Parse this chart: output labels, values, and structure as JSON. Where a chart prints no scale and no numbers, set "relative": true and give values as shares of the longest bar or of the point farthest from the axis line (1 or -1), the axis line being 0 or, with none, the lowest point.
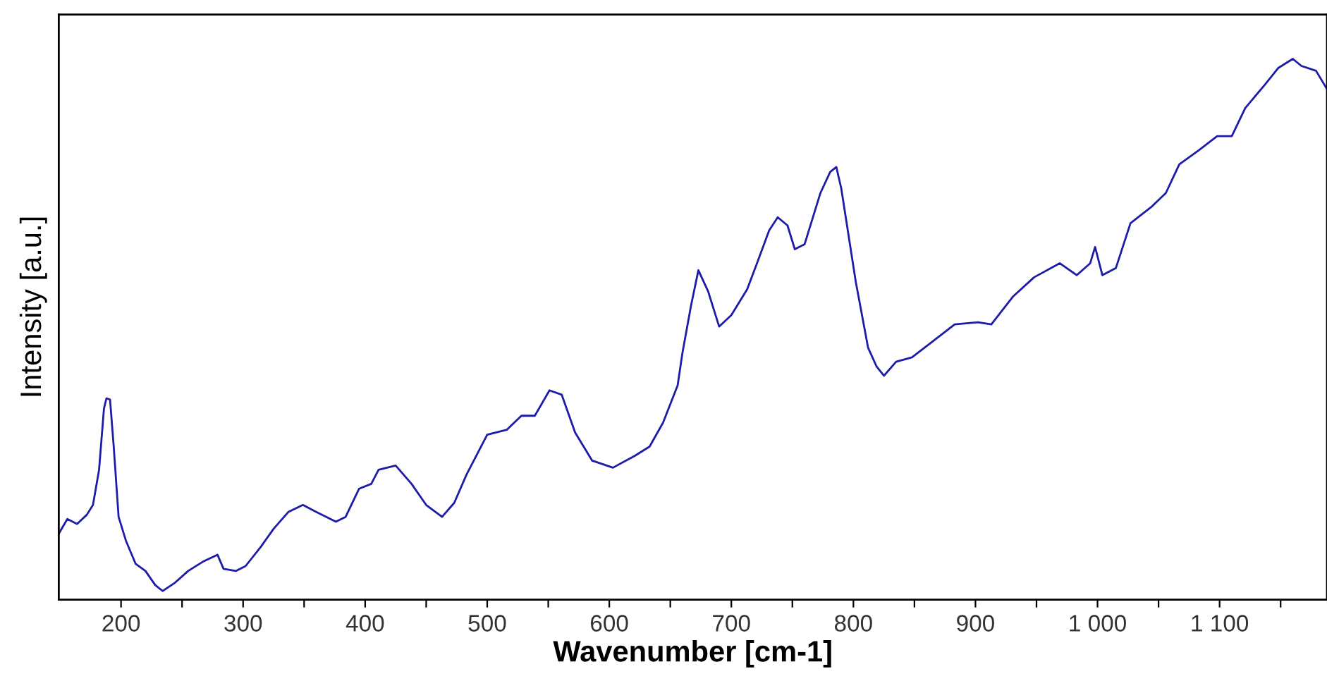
{
  "chart_data": {
    "type": "line",
    "relative": true,
    "xlabel": "Wavenumber [cm-1]",
    "ylabel": "Intensity [a.u.]",
    "xlim": [
      149,
      1188
    ],
    "xticks": [
      200,
      {
        "value": 250,
        "label": null
      },
      300,
      {
        "value": 350,
        "label": null
      },
      400,
      {
        "value": 450,
        "label": null
      },
      500,
      {
        "value": 550,
        "label": null
      },
      600,
      {
        "value": 650,
        "label": null
      },
      700,
      {
        "value": 750,
        "label": null
      },
      800,
      {
        "value": 850,
        "label": null
      },
      900,
      {
        "value": 950,
        "label": null
      },
      {
        "value": 1000,
        "label": "1 000"
      },
      {
        "value": 1050,
        "label": null
      },
      {
        "value": 1100,
        "label": "1 100"
      },
      {
        "value": 1150,
        "label": null
      }
    ],
    "tick_labels": "x",
    "grid": false,
    "legend": false,
    "marker": "none",
    "line_style": "solid",
    "series": [
      {
        "color": "#1c1ca8",
        "x": [
          149,
          156,
          164,
          172,
          177,
          182,
          186,
          188,
          191,
          194,
          198,
          204,
          212,
          220,
          228,
          234,
          244,
          255,
          267,
          279,
          284,
          294,
          302,
          314,
          325,
          337,
          349,
          360,
          376,
          384,
          395,
          405,
          411,
          425,
          438,
          450,
          463,
          473,
          483,
          500,
          516,
          528,
          539,
          551,
          561,
          572,
          586,
          603,
          621,
          633,
          644,
          656,
          660,
          667,
          673,
          681,
          690,
          700,
          713,
          721,
          731,
          738,
          746,
          752,
          760,
          773,
          781,
          786,
          790,
          802,
          812,
          819,
          825,
          835,
          848,
          863,
          883,
          902,
          913,
          931,
          948,
          969,
          983,
          994,
          998,
          1004,
          1015,
          1027,
          1044,
          1056,
          1067,
          1083,
          1098,
          1110,
          1121,
          1137,
          1148,
          1160,
          1167,
          1179,
          1188
        ],
        "values": [
          0.122,
          0.149,
          0.14,
          0.157,
          0.175,
          0.24,
          0.353,
          0.372,
          0.37,
          0.283,
          0.153,
          0.109,
          0.066,
          0.053,
          0.027,
          0.016,
          0.031,
          0.053,
          0.07,
          0.083,
          0.057,
          0.053,
          0.062,
          0.096,
          0.131,
          0.162,
          0.175,
          0.162,
          0.144,
          0.153,
          0.205,
          0.214,
          0.24,
          0.248,
          0.214,
          0.175,
          0.153,
          0.179,
          0.231,
          0.305,
          0.314,
          0.34,
          0.34,
          0.387,
          0.379,
          0.309,
          0.257,
          0.244,
          0.266,
          0.283,
          0.327,
          0.396,
          0.457,
          0.544,
          0.609,
          0.57,
          0.505,
          0.526,
          0.574,
          0.622,
          0.683,
          0.707,
          0.692,
          0.648,
          0.657,
          0.752,
          0.791,
          0.8,
          0.761,
          0.587,
          0.466,
          0.431,
          0.414,
          0.44,
          0.448,
          0.474,
          0.509,
          0.513,
          0.509,
          0.561,
          0.596,
          0.622,
          0.6,
          0.622,
          0.652,
          0.6,
          0.613,
          0.696,
          0.726,
          0.752,
          0.805,
          0.831,
          0.857,
          0.857,
          0.909,
          0.952,
          0.983,
          1.0,
          0.987,
          0.978,
          0.944
        ]
      }
    ]
  }
}
